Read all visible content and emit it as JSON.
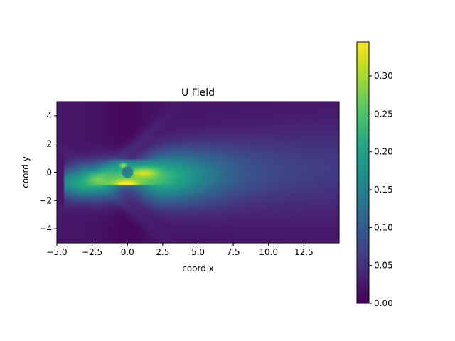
{
  "chart_data": {
    "type": "heatmap",
    "title": "U Field",
    "xlabel": "coord x",
    "ylabel": "coord y",
    "xlim": [
      -5.0,
      15.0
    ],
    "ylim": [
      -5.0,
      5.0
    ],
    "x_ticks": [
      {
        "value": -5.0,
        "label": "−5.0"
      },
      {
        "value": -2.5,
        "label": "−2.5"
      },
      {
        "value": 0.0,
        "label": "0.0"
      },
      {
        "value": 2.5,
        "label": "2.5"
      },
      {
        "value": 5.0,
        "label": "5.0"
      },
      {
        "value": 7.5,
        "label": "7.5"
      },
      {
        "value": 10.0,
        "label": "10.0"
      },
      {
        "value": 12.5,
        "label": "12.5"
      }
    ],
    "y_ticks": [
      {
        "value": -4,
        "label": "−4"
      },
      {
        "value": -2,
        "label": "−2"
      },
      {
        "value": 0,
        "label": "0"
      },
      {
        "value": 2,
        "label": "2"
      },
      {
        "value": 4,
        "label": "4"
      }
    ],
    "colormap": "viridis",
    "colorbar": {
      "vmin": 0.0,
      "vmax": 0.345,
      "ticks": [
        {
          "value": 0.0,
          "label": "0.00"
        },
        {
          "value": 0.05,
          "label": "0.05"
        },
        {
          "value": 0.1,
          "label": "0.10"
        },
        {
          "value": 0.15,
          "label": "0.15"
        },
        {
          "value": 0.2,
          "label": "0.20"
        },
        {
          "value": 0.25,
          "label": "0.25"
        },
        {
          "value": 0.3,
          "label": "0.30"
        }
      ]
    },
    "grid": false,
    "field_features": {
      "peak_value": 0.34,
      "peak_location": [
        -0.3,
        0.5
      ],
      "secondary_peak": {
        "value": 0.3,
        "location": [
          -0.2,
          -0.9
        ]
      },
      "wake_direction": "downstream along +x, slightly upward",
      "background_value": 0.02
    }
  }
}
